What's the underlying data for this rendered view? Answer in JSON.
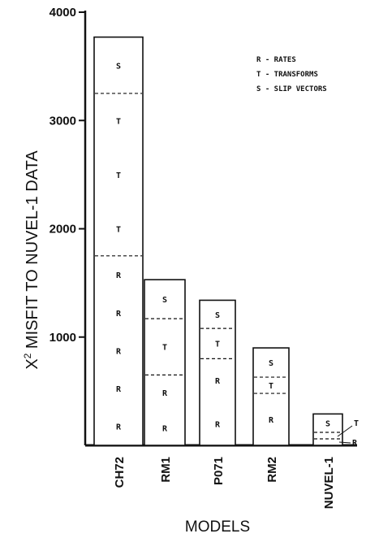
{
  "chart_data": {
    "type": "bar",
    "stacked": true,
    "xlabel": "MODELS",
    "ylabel": "X² MISFIT TO NUVEL-1  DATA",
    "ylim": [
      0,
      4000
    ],
    "yticks": [
      "1000",
      "2000",
      "3000",
      "4000"
    ],
    "categories": [
      "CH72",
      "RM1",
      "P071",
      "RM2",
      "NUVEL-1"
    ],
    "series": [
      {
        "key": "R",
        "values": [
          1750,
          650,
          800,
          480,
          60
        ]
      },
      {
        "key": "T",
        "values": [
          1500,
          520,
          280,
          150,
          60
        ]
      },
      {
        "key": "S",
        "values": [
          520,
          360,
          260,
          270,
          170
        ]
      }
    ],
    "segment_letters": [
      {
        "R": [
          "R",
          "R",
          "R",
          "R",
          "R"
        ],
        "T": [
          "T",
          "T",
          "T"
        ],
        "S": [
          "S"
        ]
      },
      {
        "R": [
          "R",
          "R"
        ],
        "T": [
          "T"
        ],
        "S": [
          "S"
        ]
      },
      {
        "R": [
          "R",
          "R"
        ],
        "T": [
          "T"
        ],
        "S": [
          "S"
        ]
      },
      {
        "R": [
          "R"
        ],
        "T": [
          "T"
        ],
        "S": [
          "S"
        ]
      },
      {
        "R": [],
        "T": [],
        "S": [
          "S"
        ]
      }
    ],
    "side_labels": {
      "T": "T",
      "R": "R"
    },
    "legend": [
      "R - RATES",
      "T - TRANSFORMS",
      "S - SLIP VECTORS"
    ],
    "legend_position": "top-right"
  }
}
